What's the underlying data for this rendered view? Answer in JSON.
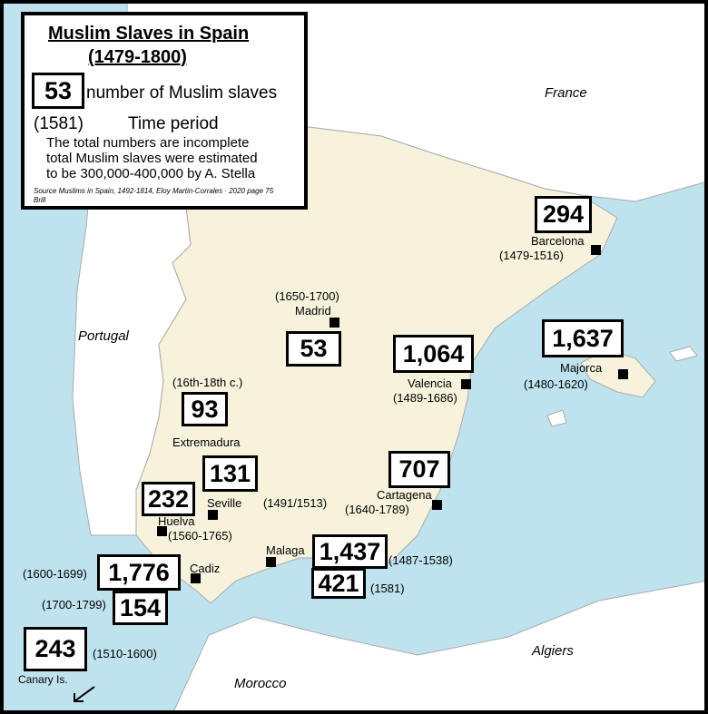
{
  "legend": {
    "title": "Muslim Slaves in Spain",
    "subtitle": "(1479-1800)",
    "example_count": "53",
    "count_caption": "number of Muslim slaves",
    "example_period": "(1581)",
    "period_caption": "Time period",
    "note": [
      "The total numbers are incomplete",
      "total Muslim slaves were estimated",
      "to be 300,000-400,000 by A. Stella"
    ],
    "source": [
      "Source Muslims in Spain, 1492-1814, Eloy Martin-Corrales · 2020 page 75",
      "Brill"
    ]
  },
  "countries": [
    "France",
    "Portugal",
    "Algiers",
    "Morocco"
  ],
  "places": [
    {
      "name": "Barcelona",
      "entries": [
        {
          "count": "294",
          "period": "(1479-1516)"
        }
      ]
    },
    {
      "name": "Madrid",
      "entries": [
        {
          "count": "53",
          "period": "(1650-1700)"
        }
      ]
    },
    {
      "name": "Valencia",
      "entries": [
        {
          "count": "1,064",
          "period": "(1489-1686)"
        }
      ]
    },
    {
      "name": "Majorca",
      "entries": [
        {
          "count": "1,637",
          "period": "(1480-1620)"
        }
      ]
    },
    {
      "name": "Extremadura",
      "entries": [
        {
          "count": "93",
          "period": "(16th-18th c.)"
        }
      ]
    },
    {
      "name": "Cartagena",
      "entries": [
        {
          "count": "707",
          "period": "(1640-1789)"
        }
      ]
    },
    {
      "name": "Seville",
      "entries": [
        {
          "count": "131",
          "period": "(1491/1513)"
        }
      ]
    },
    {
      "name": "Huelva",
      "entries": [
        {
          "count": "232",
          "period": "(1560-1765)"
        }
      ]
    },
    {
      "name": "Cadiz",
      "entries": [
        {
          "count": "1,776",
          "period": "(1600-1699)"
        },
        {
          "count": "154",
          "period": "(1700-1799)"
        }
      ]
    },
    {
      "name": "Malaga",
      "entries": [
        {
          "count": "1,437",
          "period": "(1487-1538)"
        },
        {
          "count": "421",
          "period": "(1581)"
        }
      ]
    },
    {
      "name": "Canary Is.",
      "entries": [
        {
          "count": "243",
          "period": "(1510-1600)"
        }
      ]
    }
  ]
}
